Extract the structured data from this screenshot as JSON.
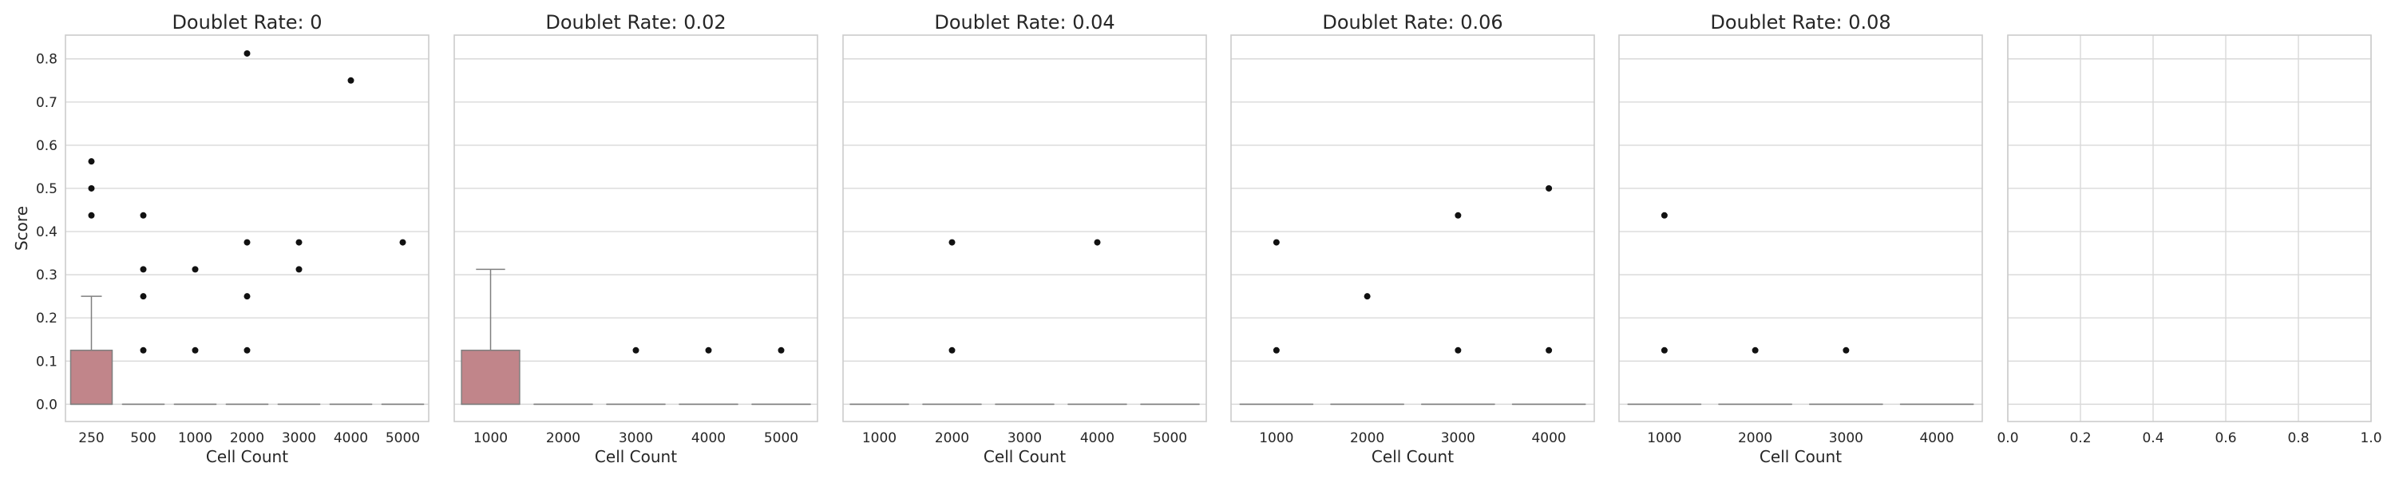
{
  "chart_data": [
    {
      "type": "box",
      "title": "Doublet Rate: 0",
      "xlabel": "Cell Count",
      "ylabel": "Score",
      "categories": [
        "250",
        "500",
        "1000",
        "2000",
        "3000",
        "4000",
        "5000"
      ],
      "boxes": [
        {
          "q1": 0,
          "median": 0,
          "q3": 0.125,
          "whisker_low": 0,
          "whisker_high": 0.25,
          "outliers": [
            0.4375,
            0.5,
            0.5625
          ]
        },
        {
          "q1": 0,
          "median": 0,
          "q3": 0,
          "whisker_low": 0,
          "whisker_high": 0,
          "outliers": [
            0.125,
            0.25,
            0.3125,
            0.4375
          ]
        },
        {
          "q1": 0,
          "median": 0,
          "q3": 0,
          "whisker_low": 0,
          "whisker_high": 0,
          "outliers": [
            0.125,
            0.3125
          ]
        },
        {
          "q1": 0,
          "median": 0,
          "q3": 0,
          "whisker_low": 0,
          "whisker_high": 0,
          "outliers": [
            0.125,
            0.25,
            0.375,
            0.8125
          ]
        },
        {
          "q1": 0,
          "median": 0,
          "q3": 0,
          "whisker_low": 0,
          "whisker_high": 0,
          "outliers": [
            0.3125,
            0.375
          ]
        },
        {
          "q1": 0,
          "median": 0,
          "q3": 0,
          "whisker_low": 0,
          "whisker_high": 0,
          "outliers": [
            0.75
          ]
        },
        {
          "q1": 0,
          "median": 0,
          "q3": 0,
          "whisker_low": 0,
          "whisker_high": 0,
          "outliers": [
            0.375
          ]
        }
      ]
    },
    {
      "type": "box",
      "title": "Doublet Rate: 0.02",
      "xlabel": "Cell Count",
      "categories": [
        "1000",
        "2000",
        "3000",
        "4000",
        "5000"
      ],
      "boxes": [
        {
          "q1": 0,
          "median": 0,
          "q3": 0.125,
          "whisker_low": 0,
          "whisker_high": 0.3125,
          "outliers": []
        },
        {
          "q1": 0,
          "median": 0,
          "q3": 0,
          "whisker_low": 0,
          "whisker_high": 0,
          "outliers": []
        },
        {
          "q1": 0,
          "median": 0,
          "q3": 0,
          "whisker_low": 0,
          "whisker_high": 0,
          "outliers": [
            0.125
          ]
        },
        {
          "q1": 0,
          "median": 0,
          "q3": 0,
          "whisker_low": 0,
          "whisker_high": 0,
          "outliers": [
            0.125
          ]
        },
        {
          "q1": 0,
          "median": 0,
          "q3": 0,
          "whisker_low": 0,
          "whisker_high": 0,
          "outliers": [
            0.125
          ]
        }
      ]
    },
    {
      "type": "box",
      "title": "Doublet Rate: 0.04",
      "xlabel": "Cell Count",
      "categories": [
        "1000",
        "2000",
        "3000",
        "4000",
        "5000"
      ],
      "boxes": [
        {
          "q1": 0,
          "median": 0,
          "q3": 0,
          "whisker_low": 0,
          "whisker_high": 0,
          "outliers": []
        },
        {
          "q1": 0,
          "median": 0,
          "q3": 0,
          "whisker_low": 0,
          "whisker_high": 0,
          "outliers": [
            0.125,
            0.375
          ]
        },
        {
          "q1": 0,
          "median": 0,
          "q3": 0,
          "whisker_low": 0,
          "whisker_high": 0,
          "outliers": []
        },
        {
          "q1": 0,
          "median": 0,
          "q3": 0,
          "whisker_low": 0,
          "whisker_high": 0,
          "outliers": [
            0.375
          ]
        },
        {
          "q1": 0,
          "median": 0,
          "q3": 0,
          "whisker_low": 0,
          "whisker_high": 0,
          "outliers": []
        }
      ]
    },
    {
      "type": "box",
      "title": "Doublet Rate: 0.06",
      "xlabel": "Cell Count",
      "categories": [
        "1000",
        "2000",
        "3000",
        "4000"
      ],
      "boxes": [
        {
          "q1": 0,
          "median": 0,
          "q3": 0,
          "whisker_low": 0,
          "whisker_high": 0,
          "outliers": [
            0.125,
            0.375
          ]
        },
        {
          "q1": 0,
          "median": 0,
          "q3": 0,
          "whisker_low": 0,
          "whisker_high": 0,
          "outliers": [
            0.25
          ]
        },
        {
          "q1": 0,
          "median": 0,
          "q3": 0,
          "whisker_low": 0,
          "whisker_high": 0,
          "outliers": [
            0.125,
            0.4375
          ]
        },
        {
          "q1": 0,
          "median": 0,
          "q3": 0,
          "whisker_low": 0,
          "whisker_high": 0,
          "outliers": [
            0.125,
            0.5
          ]
        }
      ]
    },
    {
      "type": "box",
      "title": "Doublet Rate: 0.08",
      "xlabel": "Cell Count",
      "categories": [
        "1000",
        "2000",
        "3000",
        "4000"
      ],
      "boxes": [
        {
          "q1": 0,
          "median": 0,
          "q3": 0,
          "whisker_low": 0,
          "whisker_high": 0,
          "outliers": [
            0.125,
            0.4375
          ]
        },
        {
          "q1": 0,
          "median": 0,
          "q3": 0,
          "whisker_low": 0,
          "whisker_high": 0,
          "outliers": [
            0.125
          ]
        },
        {
          "q1": 0,
          "median": 0,
          "q3": 0,
          "whisker_low": 0,
          "whisker_high": 0,
          "outliers": [
            0.125
          ]
        },
        {
          "q1": 0,
          "median": 0,
          "q3": 0,
          "whisker_low": 0,
          "whisker_high": 0,
          "outliers": []
        }
      ]
    },
    {
      "type": "empty",
      "xticks": [
        "0.0",
        "0.2",
        "0.4",
        "0.6",
        "0.8",
        "1.0"
      ]
    }
  ],
  "shared_y": {
    "ylim": [
      -0.04,
      0.855
    ],
    "yticks": [
      0,
      0.1,
      0.2,
      0.3,
      0.4,
      0.5,
      0.6,
      0.7,
      0.8
    ],
    "ytick_labels": [
      "0.0",
      "0.1",
      "0.2",
      "0.3",
      "0.4",
      "0.5",
      "0.6",
      "0.7",
      "0.8"
    ]
  },
  "style": {
    "box_color": "#c1858a",
    "line_color": "#7f7f7f",
    "outlier_color": "#111111",
    "grid_color": "#d9d9d9",
    "spine_color": "#cccccc",
    "grid": true
  }
}
